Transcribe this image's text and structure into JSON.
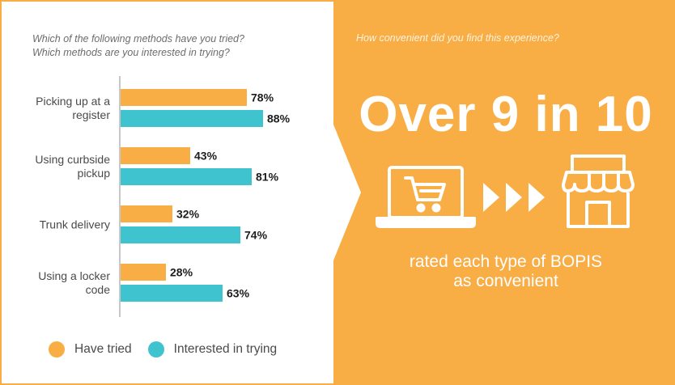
{
  "left": {
    "question_lines": [
      "Which of the following methods have you tried?",
      "Which methods are you interested in trying?"
    ]
  },
  "right": {
    "question": "How convenient did you find this experience?",
    "headline": "Over 9 in 10",
    "subtitle_lines": [
      "rated each type of BOPIS",
      "as convenient"
    ],
    "icons": [
      "laptop-cart-icon",
      "triple-arrow-icon",
      "storefront-icon"
    ]
  },
  "colors": {
    "have_tried": "#f8ad45",
    "interested": "#3ec3cf",
    "panel": "#f8ad45"
  },
  "chart_data": {
    "type": "bar",
    "orientation": "horizontal",
    "categories": [
      [
        "Picking up at a",
        "register"
      ],
      [
        "Using curbside",
        "pickup"
      ],
      [
        "Trunk delivery"
      ],
      [
        "Using a locker",
        "code"
      ]
    ],
    "series": [
      {
        "name": "Have tried",
        "values": [
          78,
          43,
          32,
          28
        ],
        "labels": [
          "78%",
          "43%",
          "32%",
          "28%"
        ]
      },
      {
        "name": "Interested in trying",
        "values": [
          88,
          81,
          74,
          63
        ],
        "labels": [
          "88%",
          "81%",
          "74%",
          "63%"
        ]
      }
    ],
    "xlim": [
      0,
      100
    ],
    "legend": "bottom",
    "grid": false
  }
}
